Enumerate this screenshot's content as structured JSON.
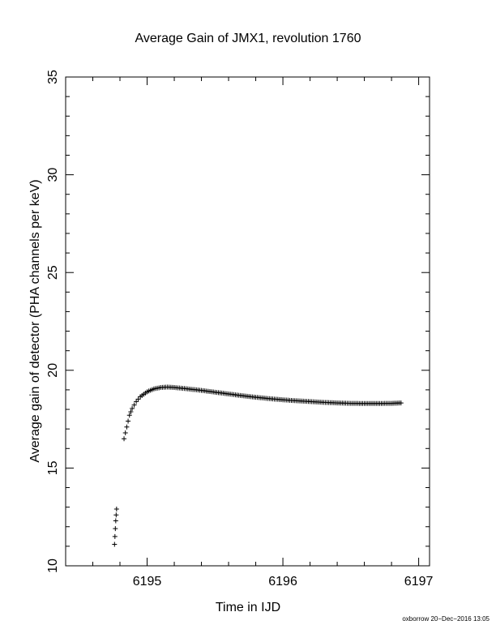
{
  "chart_data": {
    "type": "scatter",
    "title": "Average Gain of JMX1, revolution 1760",
    "xlabel": "Time in IJD",
    "ylabel": "Average gain of detector (PHA channels per keV)",
    "xlim": [
      6194.4,
      6197.08
    ],
    "ylim": [
      10,
      35
    ],
    "x_ticks": [
      "6195",
      "6196",
      "6197"
    ],
    "y_ticks": [
      "10",
      "15",
      "20",
      "25",
      "30",
      "35"
    ],
    "grid": false,
    "marker": "plus",
    "series": [
      {
        "points": [
          [
            6194.76,
            11.1
          ],
          [
            6194.763,
            11.5
          ],
          [
            6194.766,
            11.9
          ],
          [
            6194.769,
            12.3
          ],
          [
            6194.772,
            12.6
          ],
          [
            6194.775,
            12.9
          ],
          [
            6194.83,
            16.5
          ],
          [
            6194.84,
            16.8
          ],
          [
            6194.85,
            17.1
          ],
          [
            6194.86,
            17.4
          ],
          [
            6194.87,
            17.7
          ],
          [
            6194.89,
            18.05
          ],
          [
            6194.92,
            18.4
          ],
          [
            6194.95,
            18.65
          ],
          [
            6195.0,
            18.9
          ],
          [
            6195.05,
            19.05
          ],
          [
            6195.1,
            19.12
          ],
          [
            6195.15,
            19.14
          ],
          [
            6195.2,
            19.12
          ],
          [
            6195.3,
            19.05
          ],
          [
            6195.4,
            18.97
          ],
          [
            6195.5,
            18.88
          ],
          [
            6195.6,
            18.79
          ],
          [
            6195.7,
            18.7
          ],
          [
            6195.8,
            18.62
          ],
          [
            6195.9,
            18.55
          ],
          [
            6196.0,
            18.49
          ],
          [
            6196.1,
            18.44
          ],
          [
            6196.2,
            18.4
          ],
          [
            6196.3,
            18.36
          ],
          [
            6196.4,
            18.33
          ],
          [
            6196.5,
            18.31
          ],
          [
            6196.6,
            18.3
          ],
          [
            6196.7,
            18.3
          ],
          [
            6196.8,
            18.31
          ],
          [
            6196.87,
            18.33
          ]
        ]
      }
    ]
  },
  "footer": "oxborrow 20−Dec−2016 13:05"
}
